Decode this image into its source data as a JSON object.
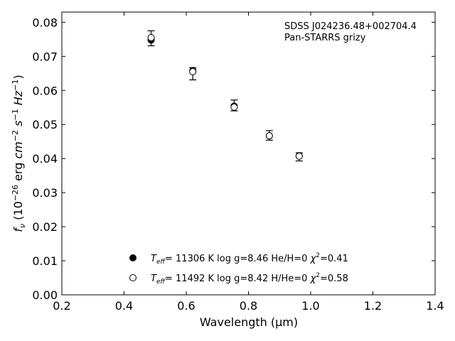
{
  "chart_data": {
    "type": "scatter",
    "annotation_lines": [
      "SDSS J024236.48+002704.4",
      "Pan-STARRS grizy"
    ],
    "xlabel": "Wavelength (μm)",
    "ylabel": "f_ν (10^-26 erg cm^-2 s^-1 Hz^-1)",
    "xlim": [
      0.2,
      1.4
    ],
    "ylim": [
      0.0,
      0.083
    ],
    "xticks": [
      "0.2",
      "0.4",
      "0.6",
      "0.8",
      "1.0",
      "1.2",
      "1.4"
    ],
    "yticks": [
      "0.00",
      "0.01",
      "0.02",
      "0.03",
      "0.04",
      "0.05",
      "0.06",
      "0.07",
      "0.08"
    ],
    "grid": false,
    "legend_position": "bottom-center",
    "observed": {
      "x": [
        0.487,
        0.621,
        0.754,
        0.867,
        0.963
      ],
      "y": [
        0.0753,
        0.0649,
        0.0556,
        0.0468,
        0.0405
      ],
      "yerr": [
        0.0022,
        0.0018,
        0.0016,
        0.0014,
        0.0012
      ]
    },
    "series": [
      {
        "marker": "filled",
        "legend": {
          "param": "T",
          "sub": "eff",
          "rest": "= 11306 K  log g=8.46  He/H=0  χ",
          "sup": "2",
          "tail": "=0.41"
        },
        "x": [
          0.487,
          0.621,
          0.754,
          0.867,
          0.963
        ],
        "y": [
          0.0748,
          0.0658,
          0.0554,
          0.0467,
          0.0408
        ]
      },
      {
        "marker": "open",
        "legend": {
          "param": "T",
          "sub": "eff",
          "rest": "= 11492 K  log g=8.42  H/He=0  χ",
          "sup": "2",
          "tail": "=0.58"
        },
        "x": [
          0.487,
          0.621,
          0.754,
          0.867,
          0.963
        ],
        "y": [
          0.0755,
          0.0655,
          0.0551,
          0.0467,
          0.0407
        ]
      }
    ]
  }
}
